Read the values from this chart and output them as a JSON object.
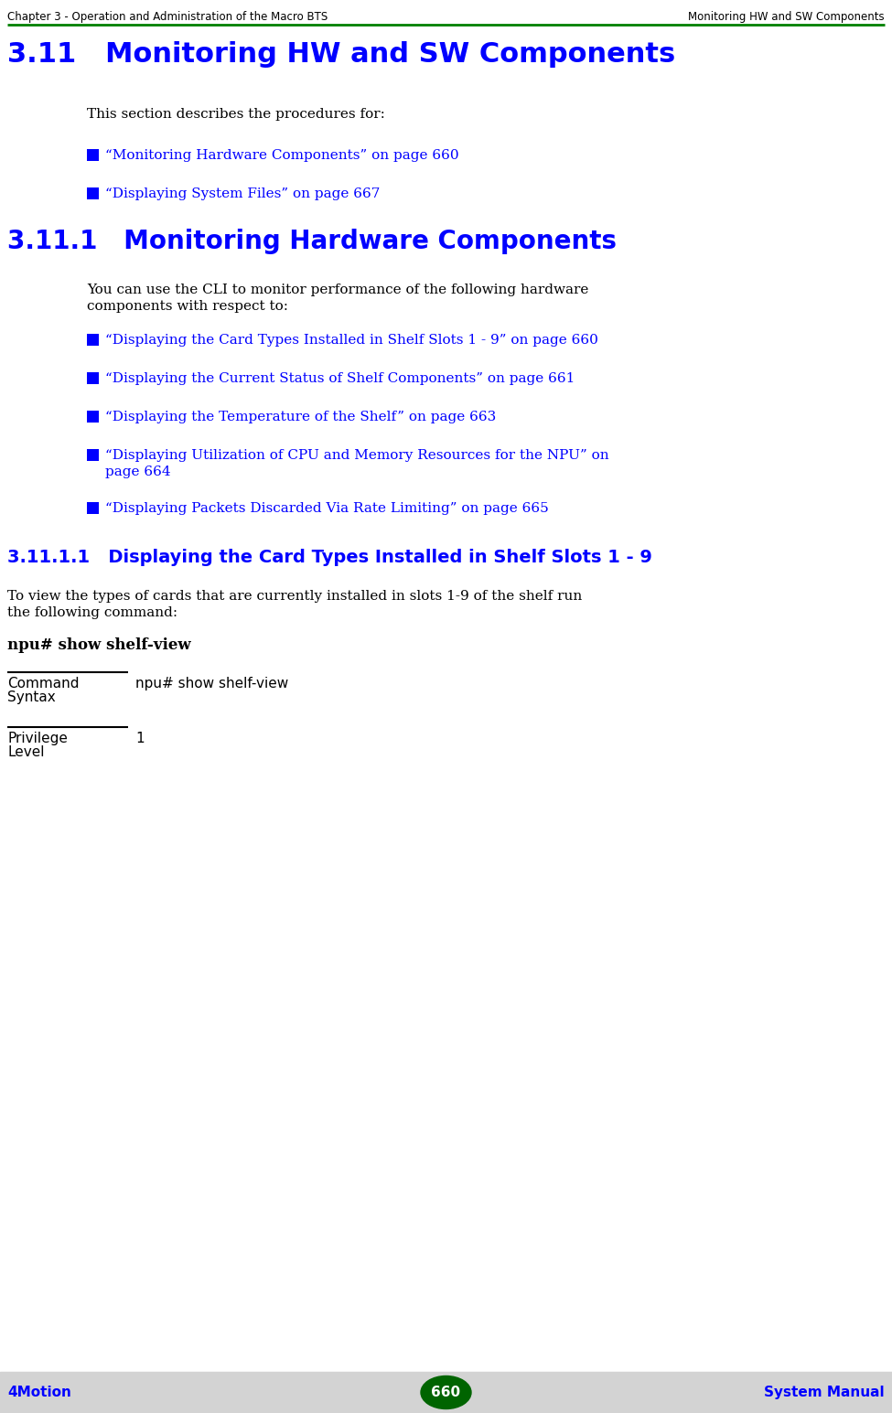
{
  "header_left": "Chapter 3 - Operation and Administration of the Macro BTS",
  "header_right": "Monitoring HW and SW Components",
  "header_line_color": "#008000",
  "section_title": "3.11   Monitoring HW and SW Components",
  "section_title_color": "#0000FF",
  "section_title_fontsize": 22,
  "body_text_color": "#000000",
  "link_color": "#0000FF",
  "body_fontsize": 11,
  "intro_text": "This section describes the procedures for:",
  "bullet_items_1": [
    "“Monitoring Hardware Components” on page 660",
    "“Displaying System Files” on page 667"
  ],
  "subsection_title": "3.11.1   Monitoring Hardware Components",
  "subsection_title_fontsize": 20,
  "subsection_body_line1": "You can use the CLI to monitor performance of the following hardware",
  "subsection_body_line2": "components with respect to:",
  "bullet_items_2": [
    "“Displaying the Card Types Installed in Shelf Slots 1 - 9” on page 660",
    "“Displaying the Current Status of Shelf Components” on page 661",
    "“Displaying the Temperature of the Shelf” on page 663",
    "“Displaying Utilization of CPU and Memory Resources for the NPU” on page 664",
    "“Displaying Packets Discarded Via Rate Limiting” on page 665"
  ],
  "bullet_items_2_wrapped": [
    [
      "“Displaying the Card Types Installed in Shelf Slots 1 - 9” on page 660"
    ],
    [
      "“Displaying the Current Status of Shelf Components” on page 661"
    ],
    [
      "“Displaying the Temperature of the Shelf” on page 663"
    ],
    [
      "“Displaying Utilization of CPU and Memory Resources for the NPU” on",
      "page 664"
    ],
    [
      "“Displaying Packets Discarded Via Rate Limiting” on page 665"
    ]
  ],
  "subsubsection_title": "3.11.1.1   Displaying the Card Types Installed in Shelf Slots 1 - 9",
  "subsubsection_fontsize": 14,
  "subsubsection_text_line1": "To view the types of cards that are currently installed in slots 1-9 of the shelf run",
  "subsubsection_text_line2": "the following command:",
  "command_text": "npu# show shelf-view",
  "table_row1_label1": "Command",
  "table_row1_label2": "Syntax",
  "table_row1_value": "npu# show shelf-view",
  "table_row2_label1": "Privilege",
  "table_row2_label2": "Level",
  "table_row2_value": "1",
  "footer_left": "4Motion",
  "footer_center": "660",
  "footer_right": "System Manual",
  "footer_bg_color": "#D3D3D3",
  "footer_circle_color": "#006400",
  "footer_text_color": "#0000FF",
  "footer_circle_text_color": "#FFFFFF",
  "bg_color": "#FFFFFF",
  "header_text_color": "#000000",
  "header_fontsize": 8.5
}
